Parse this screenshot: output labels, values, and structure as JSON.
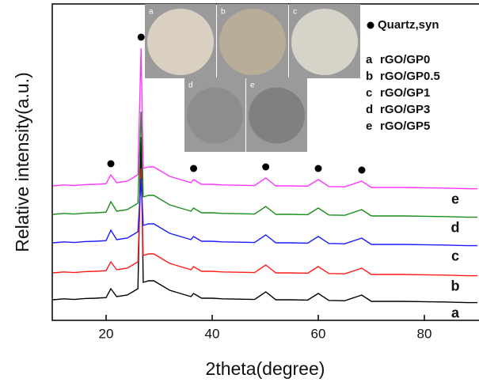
{
  "chart_data": {
    "type": "line",
    "x_label": "2theta(degree)",
    "y_label": "Relative intensity(a.u.)",
    "xlim": [
      10,
      90
    ],
    "xticks": [
      20,
      40,
      60,
      80
    ],
    "ylim": [
      0,
      100
    ],
    "x": [
      10,
      12,
      14,
      16,
      18,
      20,
      20.9,
      22,
      24,
      25,
      26,
      26.6,
      27,
      28,
      29,
      30,
      32,
      34,
      36,
      36.5,
      38,
      40,
      42,
      45,
      48,
      50.1,
      52,
      55,
      58,
      60,
      62,
      65,
      68.2,
      70,
      73,
      76,
      80,
      84,
      88,
      90
    ],
    "series": [
      {
        "name": "a",
        "label": "rGO/GP0",
        "color": "#000000",
        "values": [
          6.5,
          6.8,
          6.6,
          6.9,
          7,
          7.2,
          10,
          7.5,
          8,
          9,
          10,
          58,
          12,
          12.5,
          12.5,
          11.5,
          9.5,
          8.5,
          7.5,
          8.5,
          7,
          7,
          6.8,
          6.7,
          6.6,
          9,
          6.5,
          6.5,
          6.4,
          8.5,
          6.3,
          6.2,
          8,
          6,
          6,
          6,
          5.9,
          5.8,
          5.6,
          5.6
        ]
      },
      {
        "name": "b",
        "label": "rGO/GP0.5",
        "color": "#ff1a1a",
        "values": [
          15,
          15.3,
          15.1,
          15.4,
          15.5,
          15.7,
          18.5,
          16,
          16.5,
          17.5,
          18.5,
          48,
          20.5,
          21,
          21,
          20,
          18,
          17,
          16,
          17,
          15.5,
          15.5,
          15.3,
          15.2,
          15.1,
          17.5,
          15,
          15,
          14.9,
          17,
          14.8,
          14.7,
          16.5,
          14.5,
          14.5,
          14.5,
          14.4,
          14.3,
          14.1,
          14.1
        ]
      },
      {
        "name": "c",
        "label": "rGO/GP1",
        "color": "#1a1aff",
        "values": [
          24.5,
          24.8,
          24.6,
          24.9,
          25,
          25.2,
          28.5,
          25.5,
          26,
          27,
          28,
          45,
          30,
          30.5,
          30.5,
          29.5,
          27.5,
          26.5,
          25.5,
          26.5,
          25,
          25,
          24.8,
          24.7,
          24.6,
          27,
          24.5,
          24.5,
          24.4,
          26.5,
          24.3,
          24.2,
          26,
          24,
          24,
          24,
          23.9,
          23.8,
          23.6,
          23.6
        ]
      },
      {
        "name": "d",
        "label": "rGO/GP3",
        "color": "#1a8c1a",
        "values": [
          33.5,
          33.8,
          33.6,
          33.9,
          34,
          34.2,
          37.5,
          34.5,
          35,
          36,
          37,
          66,
          39,
          39.5,
          39.5,
          38.5,
          36.5,
          35.5,
          34.5,
          35.5,
          34,
          34,
          33.8,
          33.7,
          33.6,
          36,
          33.5,
          33.5,
          33.4,
          35.5,
          33.3,
          33.2,
          35,
          33,
          33,
          33,
          32.9,
          32.8,
          32.6,
          32.6
        ]
      },
      {
        "name": "e",
        "label": "rGO/GP5",
        "color": "#ff33ff",
        "values": [
          42.5,
          42.8,
          42.6,
          42.9,
          43,
          43.2,
          46,
          43.5,
          44,
          45,
          46,
          86,
          48,
          48.5,
          48.5,
          47.5,
          45.5,
          44.5,
          43.5,
          44.5,
          43,
          43,
          42.8,
          42.7,
          42.6,
          45,
          42.5,
          42.5,
          42.4,
          44.5,
          42.3,
          42.2,
          44,
          42,
          42,
          42,
          41.9,
          41.8,
          41.6,
          41.6
        ]
      }
    ],
    "marker_label": "Quartz,syn",
    "marker_x": [
      20.9,
      26.6,
      36.5,
      50.1,
      60,
      68.2
    ],
    "photo_labels": [
      "a",
      "b",
      "c",
      "d",
      "e"
    ]
  }
}
